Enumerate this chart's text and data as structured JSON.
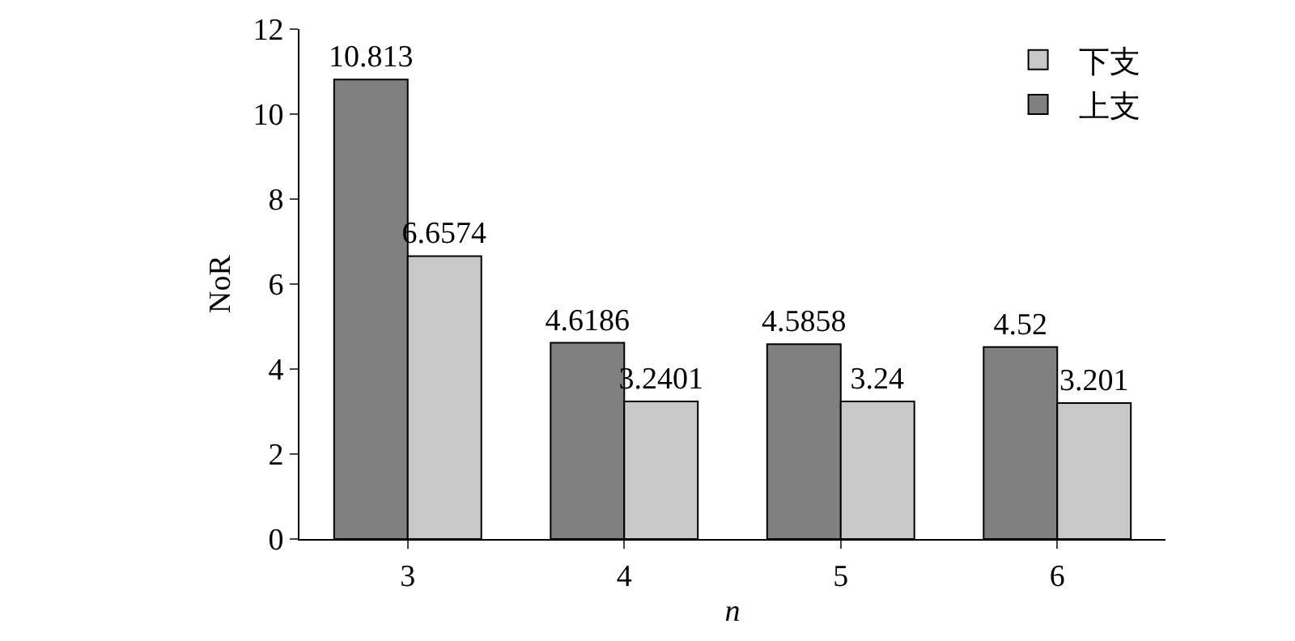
{
  "chart_data": {
    "type": "bar",
    "xlabel": "n",
    "ylabel": "NoR",
    "categories": [
      "3",
      "4",
      "5",
      "6"
    ],
    "series": [
      {
        "name": "上支",
        "color": "#808080",
        "values": [
          10.813,
          4.6186,
          4.5858,
          4.52
        ]
      },
      {
        "name": "下支",
        "color": "#c8c8c8",
        "values": [
          6.6574,
          3.2401,
          3.24,
          3.201
        ]
      }
    ],
    "ylim": [
      0,
      12
    ],
    "yticks": [
      0,
      2,
      4,
      6,
      8,
      10,
      12
    ],
    "data_labels": true,
    "legend": "top right",
    "grid": false
  }
}
